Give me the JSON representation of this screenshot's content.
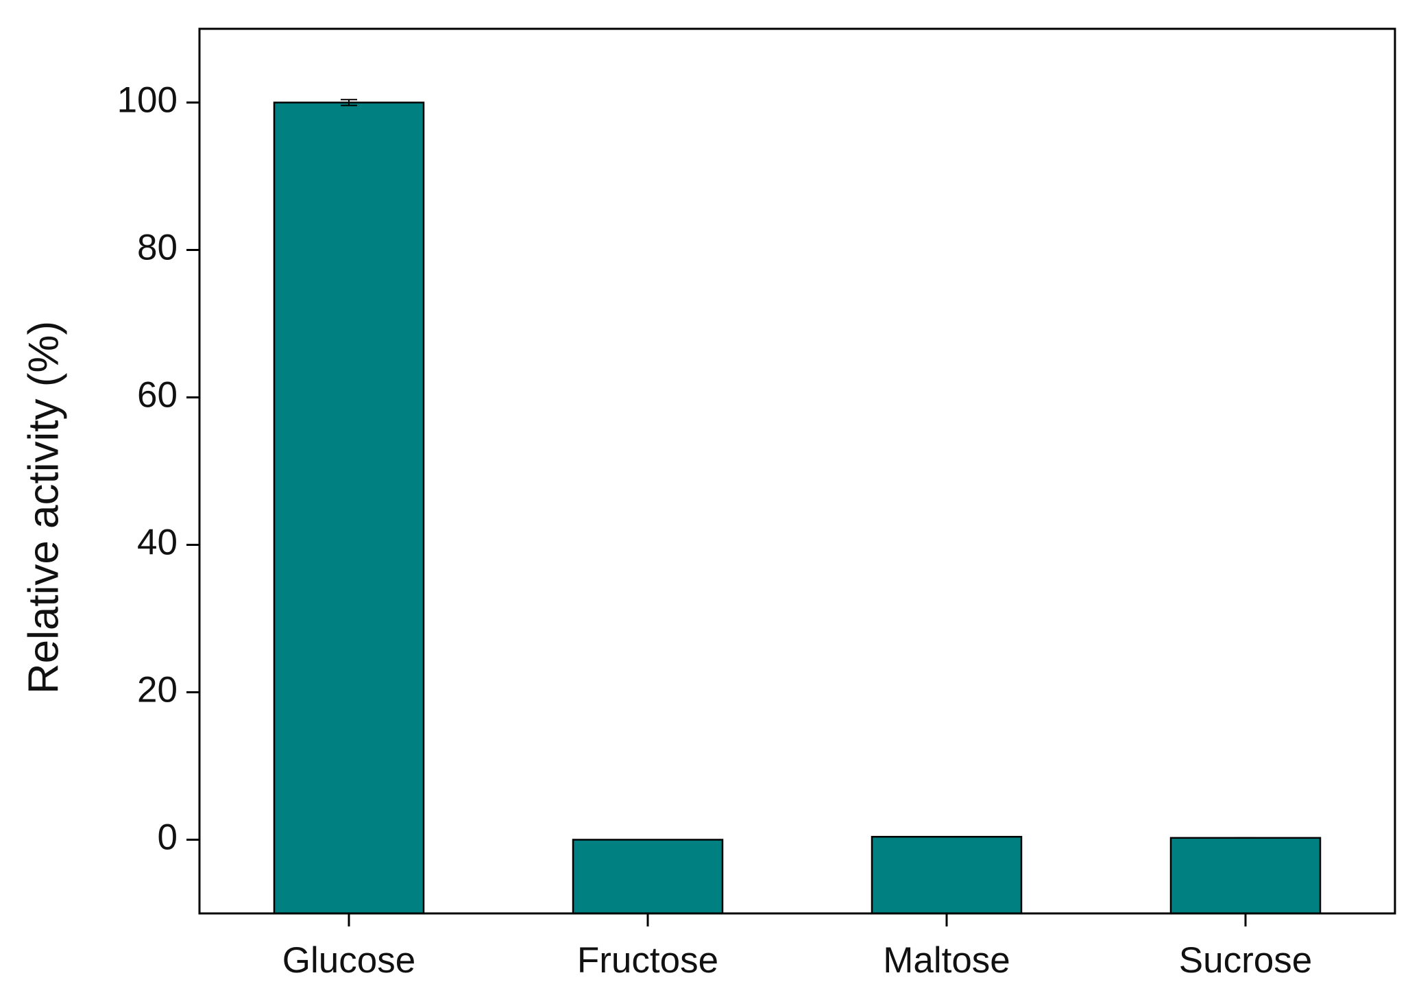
{
  "chart_data": {
    "type": "bar",
    "y_label": "Relative activity (%)",
    "categories": [
      "Glucose",
      "Fructose",
      "Maltose",
      "Sucrose"
    ],
    "values": [
      100,
      0,
      0.4,
      0.25
    ],
    "errors": [
      0.4,
      0,
      0,
      0
    ],
    "color": "#008080",
    "ylim": [
      -10,
      110
    ],
    "yticks": [
      0,
      20,
      40,
      60,
      80,
      100
    ],
    "grid": false
  }
}
